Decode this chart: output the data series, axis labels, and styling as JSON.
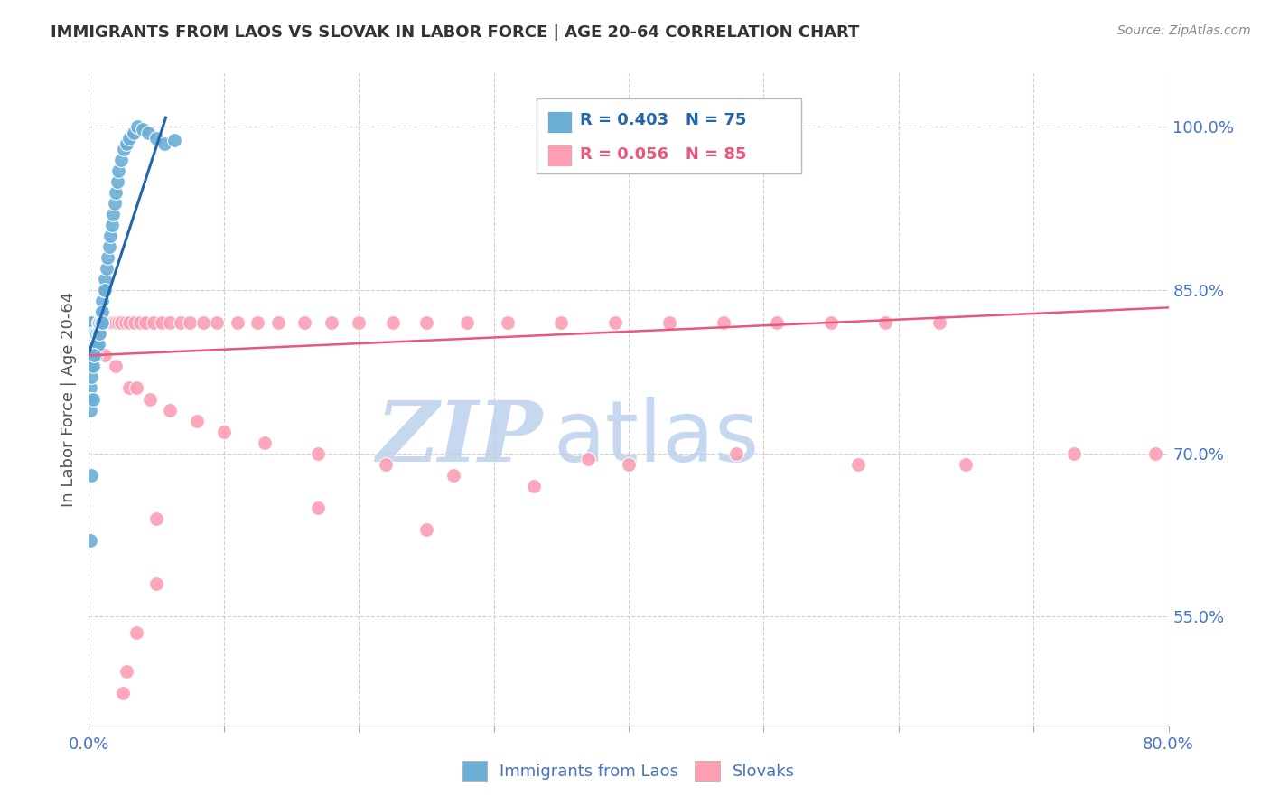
{
  "title": "IMMIGRANTS FROM LAOS VS SLOVAK IN LABOR FORCE | AGE 20-64 CORRELATION CHART",
  "source_text": "Source: ZipAtlas.com",
  "ylabel": "In Labor Force | Age 20-64",
  "xlim": [
    0.0,
    0.8
  ],
  "ylim": [
    0.45,
    1.05
  ],
  "xticks": [
    0.0,
    0.1,
    0.2,
    0.3,
    0.4,
    0.5,
    0.6,
    0.7,
    0.8
  ],
  "xticklabels": [
    "0.0%",
    "",
    "",
    "",
    "",
    "",
    "",
    "",
    "80.0%"
  ],
  "yticks": [
    0.55,
    0.7,
    0.85,
    1.0
  ],
  "yticklabels": [
    "55.0%",
    "70.0%",
    "85.0%",
    "100.0%"
  ],
  "laos_R": 0.403,
  "laos_N": 75,
  "slovak_R": 0.056,
  "slovak_N": 85,
  "laos_color": "#6BAED6",
  "slovak_color": "#FC9EB4",
  "laos_line_color": "#2166AC",
  "slovak_line_color": "#E8587A",
  "grid_color": "#CCCCCC",
  "title_color": "#333333",
  "tick_color": "#4472C4",
  "watermark_zip": "ZIP",
  "watermark_atlas": "atlas",
  "watermark_color_zip": "#C5D8F0",
  "watermark_color_atlas": "#C5D8F0",
  "laos_x": [
    0.001,
    0.001,
    0.001,
    0.001,
    0.001,
    0.002,
    0.002,
    0.002,
    0.002,
    0.002,
    0.002,
    0.002,
    0.003,
    0.003,
    0.003,
    0.003,
    0.003,
    0.003,
    0.003,
    0.004,
    0.004,
    0.004,
    0.004,
    0.004,
    0.005,
    0.005,
    0.005,
    0.005,
    0.006,
    0.006,
    0.006,
    0.007,
    0.007,
    0.007,
    0.008,
    0.008,
    0.009,
    0.009,
    0.01,
    0.01,
    0.01,
    0.011,
    0.012,
    0.012,
    0.013,
    0.014,
    0.015,
    0.016,
    0.017,
    0.018,
    0.019,
    0.02,
    0.021,
    0.022,
    0.024,
    0.026,
    0.028,
    0.03,
    0.033,
    0.036,
    0.04,
    0.044,
    0.05,
    0.056,
    0.063,
    0.001,
    0.001,
    0.001,
    0.002,
    0.002,
    0.003,
    0.004,
    0.002,
    0.001,
    0.003
  ],
  "laos_y": [
    0.8,
    0.81,
    0.8,
    0.79,
    0.78,
    0.81,
    0.82,
    0.8,
    0.8,
    0.8,
    0.79,
    0.8,
    0.8,
    0.8,
    0.8,
    0.8,
    0.8,
    0.81,
    0.8,
    0.81,
    0.8,
    0.8,
    0.8,
    0.8,
    0.8,
    0.81,
    0.8,
    0.79,
    0.81,
    0.8,
    0.8,
    0.82,
    0.81,
    0.8,
    0.82,
    0.81,
    0.83,
    0.82,
    0.84,
    0.83,
    0.82,
    0.85,
    0.86,
    0.85,
    0.87,
    0.88,
    0.89,
    0.9,
    0.91,
    0.92,
    0.93,
    0.94,
    0.95,
    0.96,
    0.97,
    0.98,
    0.985,
    0.99,
    0.995,
    1.0,
    0.998,
    0.995,
    0.99,
    0.985,
    0.988,
    0.76,
    0.75,
    0.74,
    0.78,
    0.77,
    0.78,
    0.79,
    0.68,
    0.62,
    0.75
  ],
  "slovak_x": [
    0.001,
    0.001,
    0.001,
    0.002,
    0.002,
    0.002,
    0.002,
    0.003,
    0.003,
    0.003,
    0.003,
    0.004,
    0.004,
    0.004,
    0.004,
    0.005,
    0.005,
    0.005,
    0.006,
    0.006,
    0.007,
    0.007,
    0.008,
    0.008,
    0.009,
    0.01,
    0.011,
    0.012,
    0.013,
    0.015,
    0.016,
    0.018,
    0.02,
    0.022,
    0.024,
    0.027,
    0.03,
    0.034,
    0.038,
    0.042,
    0.048,
    0.054,
    0.06,
    0.068,
    0.075,
    0.085,
    0.095,
    0.11,
    0.125,
    0.14,
    0.16,
    0.18,
    0.2,
    0.225,
    0.25,
    0.28,
    0.31,
    0.35,
    0.39,
    0.43,
    0.47,
    0.51,
    0.55,
    0.59,
    0.63,
    0.012,
    0.02,
    0.03,
    0.045,
    0.06,
    0.08,
    0.1,
    0.13,
    0.17,
    0.22,
    0.27,
    0.33,
    0.4,
    0.48,
    0.57,
    0.65,
    0.73,
    0.79,
    0.035,
    0.05
  ],
  "slovak_y": [
    0.8,
    0.8,
    0.81,
    0.8,
    0.81,
    0.8,
    0.8,
    0.8,
    0.81,
    0.8,
    0.8,
    0.81,
    0.82,
    0.8,
    0.81,
    0.81,
    0.8,
    0.8,
    0.82,
    0.81,
    0.82,
    0.81,
    0.82,
    0.81,
    0.82,
    0.82,
    0.82,
    0.82,
    0.82,
    0.82,
    0.82,
    0.82,
    0.82,
    0.82,
    0.82,
    0.82,
    0.82,
    0.82,
    0.82,
    0.82,
    0.82,
    0.82,
    0.82,
    0.82,
    0.82,
    0.82,
    0.82,
    0.82,
    0.82,
    0.82,
    0.82,
    0.82,
    0.82,
    0.82,
    0.82,
    0.82,
    0.82,
    0.82,
    0.82,
    0.82,
    0.82,
    0.82,
    0.82,
    0.82,
    0.82,
    0.79,
    0.78,
    0.76,
    0.75,
    0.74,
    0.73,
    0.72,
    0.71,
    0.7,
    0.69,
    0.68,
    0.67,
    0.69,
    0.7,
    0.69,
    0.69,
    0.7,
    0.7,
    0.76,
    0.64
  ],
  "slovak_outliers_x": [
    0.37,
    0.05,
    0.035,
    0.028,
    0.025,
    0.17,
    0.25
  ],
  "slovak_outliers_y": [
    0.695,
    0.58,
    0.535,
    0.5,
    0.48,
    0.65,
    0.63
  ]
}
